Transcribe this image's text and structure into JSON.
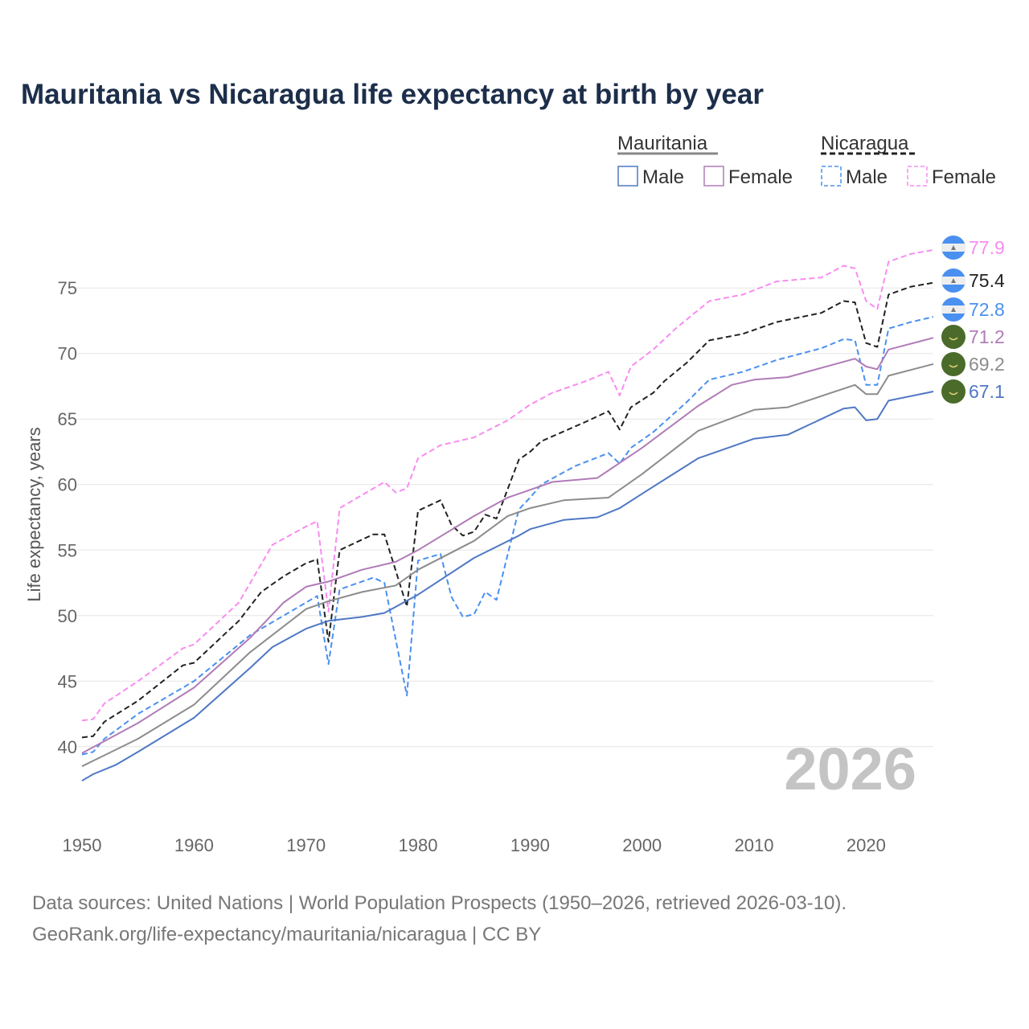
{
  "chart_data": {
    "type": "line",
    "title": "Mauritania vs Nicaragua life expectancy at birth by year",
    "xlabel": "",
    "ylabel": "Life expectancy, years",
    "xlim": [
      1950,
      2026
    ],
    "ylim": [
      36,
      79
    ],
    "x_ticks": [
      "1950",
      "1960",
      "1970",
      "1980",
      "1990",
      "2000",
      "2010",
      "2020"
    ],
    "y_ticks": [
      "40",
      "45",
      "50",
      "55",
      "60",
      "65",
      "70",
      "75"
    ],
    "grid": true,
    "current_year": "2026",
    "legend": {
      "groups": [
        {
          "name": "Mauritania",
          "color": "#888888",
          "dash": false,
          "items": [
            {
              "label": "Male",
              "color": "#4f78c4"
            },
            {
              "label": "Female",
              "color": "#b07cb7"
            }
          ]
        },
        {
          "name": "Nicaragua",
          "color": "#222222",
          "dash": true,
          "items": [
            {
              "label": "Male",
              "color": "#4a90f0"
            },
            {
              "label": "Female",
              "color": "#f78cf0"
            }
          ]
        }
      ]
    },
    "series": [
      {
        "name": "Nicaragua Female",
        "color": "#f78cf0",
        "dash": true,
        "flag": "nicaragua",
        "end_label": "77.9",
        "points": [
          [
            1950,
            42.0
          ],
          [
            1951,
            42.1
          ],
          [
            1952,
            43.3
          ],
          [
            1955,
            45.0
          ],
          [
            1959,
            47.5
          ],
          [
            1960,
            47.8
          ],
          [
            1964,
            51.0
          ],
          [
            1967,
            55.4
          ],
          [
            1970,
            56.8
          ],
          [
            1971,
            57.2
          ],
          [
            1972,
            50.3
          ],
          [
            1973,
            58.2
          ],
          [
            1977,
            60.2
          ],
          [
            1978,
            59.4
          ],
          [
            1979,
            59.7
          ],
          [
            1980,
            62.0
          ],
          [
            1982,
            63.0
          ],
          [
            1985,
            63.6
          ],
          [
            1988,
            64.9
          ],
          [
            1990,
            66.1
          ],
          [
            1992,
            67.0
          ],
          [
            1995,
            67.9
          ],
          [
            1997,
            68.6
          ],
          [
            1998,
            66.8
          ],
          [
            1999,
            69.0
          ],
          [
            2001,
            70.3
          ],
          [
            2003,
            71.9
          ],
          [
            2006,
            74.0
          ],
          [
            2009,
            74.5
          ],
          [
            2012,
            75.5
          ],
          [
            2016,
            75.8
          ],
          [
            2018,
            76.7
          ],
          [
            2019,
            76.5
          ],
          [
            2020,
            74.0
          ],
          [
            2021,
            73.4
          ],
          [
            2022,
            77.0
          ],
          [
            2024,
            77.6
          ],
          [
            2026,
            77.9
          ]
        ]
      },
      {
        "name": "Nicaragua",
        "color": "#222222",
        "dash": true,
        "flag": "nicaragua",
        "end_label": "75.4",
        "points": [
          [
            1950,
            40.7
          ],
          [
            1951,
            40.8
          ],
          [
            1952,
            41.9
          ],
          [
            1955,
            43.5
          ],
          [
            1959,
            46.2
          ],
          [
            1960,
            46.4
          ],
          [
            1964,
            49.6
          ],
          [
            1966,
            51.8
          ],
          [
            1968,
            53.0
          ],
          [
            1970,
            54.0
          ],
          [
            1971,
            54.3
          ],
          [
            1972,
            48.0
          ],
          [
            1973,
            55.0
          ],
          [
            1976,
            56.2
          ],
          [
            1977,
            56.2
          ],
          [
            1979,
            50.7
          ],
          [
            1980,
            58.0
          ],
          [
            1982,
            58.8
          ],
          [
            1983,
            56.9
          ],
          [
            1984,
            56.1
          ],
          [
            1985,
            56.4
          ],
          [
            1986,
            57.7
          ],
          [
            1987,
            57.4
          ],
          [
            1989,
            61.9
          ],
          [
            1990,
            62.5
          ],
          [
            1991,
            63.3
          ],
          [
            1995,
            64.8
          ],
          [
            1997,
            65.6
          ],
          [
            1998,
            64.2
          ],
          [
            1999,
            65.9
          ],
          [
            2001,
            67.0
          ],
          [
            2002,
            67.9
          ],
          [
            2004,
            69.3
          ],
          [
            2006,
            71.0
          ],
          [
            2009,
            71.5
          ],
          [
            2012,
            72.4
          ],
          [
            2016,
            73.1
          ],
          [
            2018,
            74.0
          ],
          [
            2019,
            73.9
          ],
          [
            2020,
            70.8
          ],
          [
            2021,
            70.5
          ],
          [
            2022,
            74.5
          ],
          [
            2024,
            75.1
          ],
          [
            2026,
            75.4
          ]
        ]
      },
      {
        "name": "Nicaragua Male",
        "color": "#4a90f0",
        "dash": true,
        "flag": "nicaragua",
        "end_label": "72.8",
        "points": [
          [
            1950,
            39.4
          ],
          [
            1951,
            39.6
          ],
          [
            1952,
            40.6
          ],
          [
            1955,
            42.5
          ],
          [
            1960,
            45.0
          ],
          [
            1965,
            48.5
          ],
          [
            1967,
            49.5
          ],
          [
            1970,
            51.0
          ],
          [
            1971,
            51.5
          ],
          [
            1972,
            46.3
          ],
          [
            1973,
            52.0
          ],
          [
            1976,
            52.9
          ],
          [
            1977,
            52.5
          ],
          [
            1979,
            43.9
          ],
          [
            1980,
            54.2
          ],
          [
            1982,
            54.7
          ],
          [
            1983,
            51.4
          ],
          [
            1984,
            49.9
          ],
          [
            1985,
            50.1
          ],
          [
            1986,
            51.8
          ],
          [
            1987,
            51.2
          ],
          [
            1989,
            58.1
          ],
          [
            1990,
            59.0
          ],
          [
            1991,
            60.0
          ],
          [
            1994,
            61.4
          ],
          [
            1997,
            62.4
          ],
          [
            1998,
            61.6
          ],
          [
            1999,
            62.8
          ],
          [
            2001,
            64.0
          ],
          [
            2004,
            66.3
          ],
          [
            2006,
            68.0
          ],
          [
            2009,
            68.6
          ],
          [
            2012,
            69.5
          ],
          [
            2016,
            70.4
          ],
          [
            2018,
            71.1
          ],
          [
            2019,
            71.0
          ],
          [
            2020,
            67.6
          ],
          [
            2021,
            67.6
          ],
          [
            2022,
            71.9
          ],
          [
            2024,
            72.4
          ],
          [
            2026,
            72.8
          ]
        ]
      },
      {
        "name": "Mauritania Female",
        "color": "#b07cb7",
        "dash": false,
        "flag": "mauritania",
        "end_label": "71.2",
        "points": [
          [
            1950,
            39.5
          ],
          [
            1955,
            41.8
          ],
          [
            1960,
            44.5
          ],
          [
            1965,
            48.3
          ],
          [
            1968,
            51.0
          ],
          [
            1970,
            52.2
          ],
          [
            1972,
            52.6
          ],
          [
            1975,
            53.5
          ],
          [
            1978,
            54.1
          ],
          [
            1980,
            55.0
          ],
          [
            1985,
            57.6
          ],
          [
            1988,
            59.0
          ],
          [
            1990,
            59.6
          ],
          [
            1992,
            60.2
          ],
          [
            1996,
            60.5
          ],
          [
            2000,
            62.8
          ],
          [
            2005,
            66.0
          ],
          [
            2008,
            67.6
          ],
          [
            2010,
            68.0
          ],
          [
            2013,
            68.2
          ],
          [
            2019,
            69.6
          ],
          [
            2020,
            69.0
          ],
          [
            2021,
            68.8
          ],
          [
            2022,
            70.3
          ],
          [
            2026,
            71.2
          ]
        ]
      },
      {
        "name": "Mauritania",
        "color": "#8c8c8c",
        "dash": false,
        "flag": "mauritania",
        "end_label": "69.2",
        "points": [
          [
            1950,
            38.5
          ],
          [
            1955,
            40.6
          ],
          [
            1960,
            43.2
          ],
          [
            1965,
            47.2
          ],
          [
            1970,
            50.5
          ],
          [
            1972,
            51.1
          ],
          [
            1975,
            51.8
          ],
          [
            1978,
            52.3
          ],
          [
            1980,
            53.5
          ],
          [
            1985,
            55.7
          ],
          [
            1988,
            57.6
          ],
          [
            1990,
            58.2
          ],
          [
            1993,
            58.8
          ],
          [
            1997,
            59.0
          ],
          [
            2000,
            60.8
          ],
          [
            2005,
            64.1
          ],
          [
            2010,
            65.7
          ],
          [
            2013,
            65.9
          ],
          [
            2019,
            67.6
          ],
          [
            2020,
            66.9
          ],
          [
            2021,
            66.9
          ],
          [
            2022,
            68.3
          ],
          [
            2026,
            69.2
          ]
        ]
      },
      {
        "name": "Mauritania Male",
        "color": "#4f78c4",
        "dash": false,
        "flag": "mauritania",
        "end_label": "67.1",
        "points": [
          [
            1950,
            37.4
          ],
          [
            1951,
            37.9
          ],
          [
            1953,
            38.6
          ],
          [
            1955,
            39.6
          ],
          [
            1960,
            42.2
          ],
          [
            1965,
            46.0
          ],
          [
            1967,
            47.6
          ],
          [
            1970,
            49.0
          ],
          [
            1972,
            49.6
          ],
          [
            1975,
            49.9
          ],
          [
            1977,
            50.2
          ],
          [
            1980,
            51.6
          ],
          [
            1985,
            54.4
          ],
          [
            1989,
            56.1
          ],
          [
            1990,
            56.6
          ],
          [
            1993,
            57.3
          ],
          [
            1996,
            57.5
          ],
          [
            1998,
            58.2
          ],
          [
            2000,
            59.3
          ],
          [
            2005,
            62.0
          ],
          [
            2010,
            63.5
          ],
          [
            2013,
            63.8
          ],
          [
            2018,
            65.8
          ],
          [
            2019,
            65.9
          ],
          [
            2020,
            64.9
          ],
          [
            2021,
            65.0
          ],
          [
            2022,
            66.4
          ],
          [
            2026,
            67.1
          ]
        ]
      }
    ]
  },
  "footer": {
    "line1": "Data sources: United Nations | World Population Prospects (1950–2026, retrieved 2026-03-10).",
    "line2": "GeoRank.org/life-expectancy/mauritania/nicaragua | CC BY"
  }
}
